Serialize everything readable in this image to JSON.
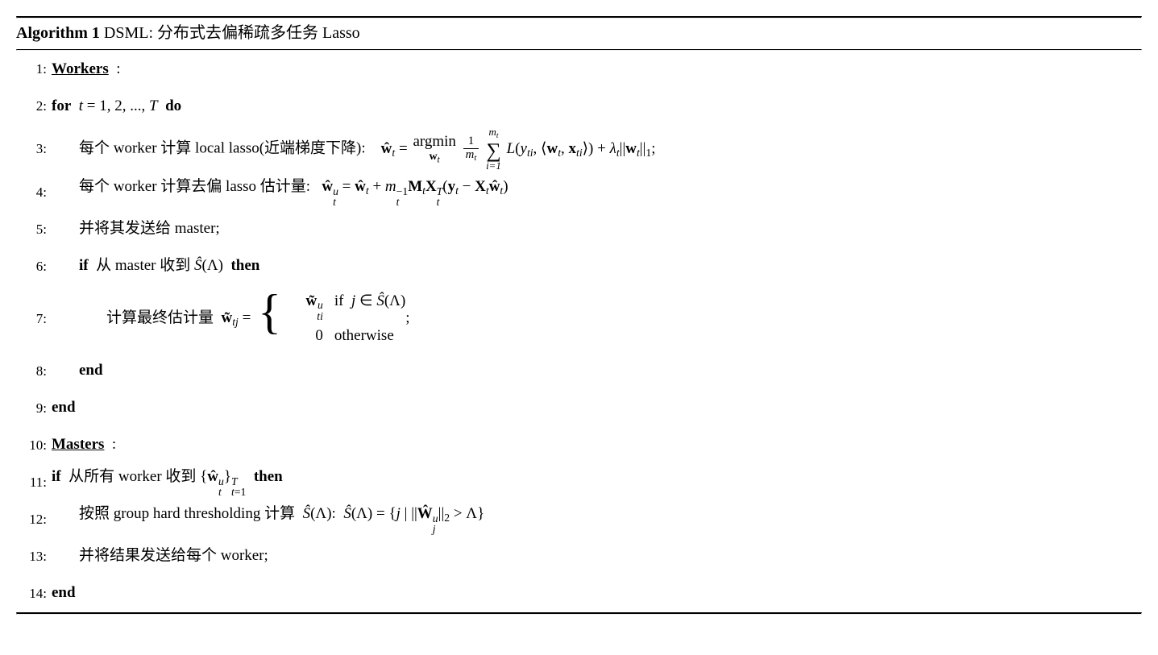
{
  "title": {
    "label": "Algorithm 1",
    "name": "DSML: 分布式去偏稀疏多任务 Lasso"
  },
  "lines": {
    "l1": {
      "no": "1:",
      "text": "Workers"
    },
    "l2": {
      "no": "2:",
      "kw_for": "for",
      "range": "t = 1, 2, ..., T",
      "kw_do": "do"
    },
    "l3": {
      "no": "3:",
      "text": "每个 worker 计算 local lasso(近端梯度下降):"
    },
    "l4": {
      "no": "4:",
      "text": "每个 worker 计算去偏 lasso 估计量:"
    },
    "l5": {
      "no": "5:",
      "text": "并将其发送给 master;"
    },
    "l6": {
      "no": "6:",
      "kw_if": "if",
      "text": "从 master 收到",
      "kw_then": "then"
    },
    "l7": {
      "no": "7:",
      "text": "计算最终估计量"
    },
    "l8": {
      "no": "8:",
      "kw": "end"
    },
    "l9": {
      "no": "9:",
      "kw": "end"
    },
    "l10": {
      "no": "10:",
      "text": "Masters"
    },
    "l11": {
      "no": "11:",
      "kw_if": "if",
      "text": "从所有 worker 收到",
      "kw_then": "then"
    },
    "l12": {
      "no": "12:",
      "text": "按照 group hard thresholding 计算"
    },
    "l13": {
      "no": "13:",
      "text": "并将结果发送给每个 worker;"
    },
    "l14": {
      "no": "14:",
      "kw": "end"
    }
  },
  "math": {
    "argmin": "argmin",
    "if": "if",
    "otherwise": "otherwise",
    "sum_upper": "m",
    "sum_upper_sub": "t",
    "sum_lower": "i=1"
  }
}
